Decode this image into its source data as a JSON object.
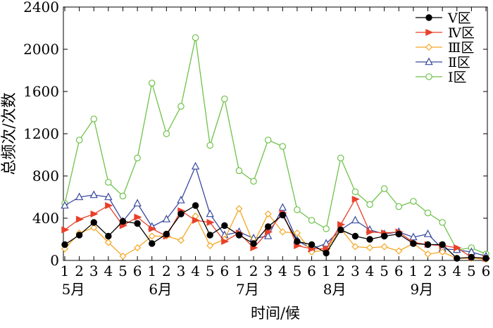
{
  "chart_data": {
    "type": "line",
    "xlabel": "时间/候",
    "ylabel": "总频次/次数",
    "ylim": [
      0,
      2400
    ],
    "yticks": [
      0,
      400,
      800,
      1200,
      1600,
      2000,
      2400
    ],
    "x_tick_labels": [
      "1",
      "2",
      "3",
      "4",
      "5",
      "6",
      "1",
      "2",
      "3",
      "4",
      "5",
      "6",
      "1",
      "2",
      "3",
      "4",
      "5",
      "6",
      "1",
      "2",
      "3",
      "4",
      "5",
      "6",
      "1",
      "2",
      "3",
      "4",
      "5",
      "6"
    ],
    "months": [
      "5月",
      "6月",
      "7月",
      "8月",
      "9月"
    ],
    "legend_position": "top-right",
    "grid": false,
    "series": [
      {
        "name": "Ⅴ区",
        "color": "#000000",
        "marker": "filled-circle",
        "values": [
          150,
          240,
          360,
          230,
          370,
          350,
          160,
          250,
          440,
          520,
          240,
          330,
          240,
          160,
          320,
          430,
          180,
          150,
          70,
          290,
          230,
          200,
          230,
          250,
          160,
          150,
          150,
          20,
          30,
          20
        ]
      },
      {
        "name": "Ⅳ区",
        "color": "#e8402a",
        "marker": "right-triangle",
        "values": [
          290,
          390,
          440,
          520,
          330,
          410,
          300,
          230,
          470,
          380,
          360,
          180,
          260,
          120,
          270,
          450,
          140,
          110,
          110,
          340,
          580,
          270,
          260,
          270,
          170,
          150,
          140,
          120,
          30,
          20
        ]
      },
      {
        "name": "Ⅲ区",
        "color": "#f5a623",
        "marker": "open-diamond",
        "values": [
          110,
          260,
          310,
          170,
          40,
          120,
          230,
          230,
          190,
          420,
          140,
          200,
          490,
          160,
          440,
          270,
          260,
          80,
          100,
          300,
          130,
          120,
          130,
          90,
          160,
          60,
          80,
          20,
          20,
          10
        ]
      },
      {
        "name": "Ⅱ区",
        "color": "#3a4aa0",
        "marker": "open-triangle",
        "values": [
          520,
          600,
          620,
          600,
          370,
          540,
          320,
          390,
          570,
          890,
          440,
          240,
          270,
          210,
          230,
          500,
          190,
          110,
          160,
          290,
          380,
          290,
          250,
          270,
          220,
          250,
          110,
          100,
          80,
          40
        ]
      },
      {
        "name": "Ⅰ区",
        "color": "#6fc24a",
        "marker": "open-circle",
        "values": [
          540,
          1140,
          1340,
          740,
          610,
          970,
          1680,
          1200,
          1460,
          2110,
          1090,
          1530,
          850,
          750,
          1140,
          1080,
          480,
          380,
          300,
          970,
          650,
          530,
          680,
          510,
          560,
          450,
          360,
          100,
          120,
          60
        ]
      }
    ]
  }
}
